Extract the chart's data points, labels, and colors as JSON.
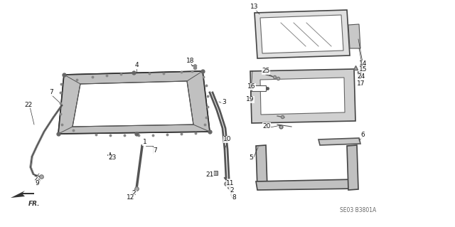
{
  "bg_color": "#ffffff",
  "diagram_code": "SE03 B3801A",
  "fig_width": 6.4,
  "fig_height": 3.19,
  "dpi": 100,
  "line_color": "#333333",
  "text_color": "#111111",
  "part_fill": "#d8d8d8",
  "inner_fill": "#f0f0f0"
}
